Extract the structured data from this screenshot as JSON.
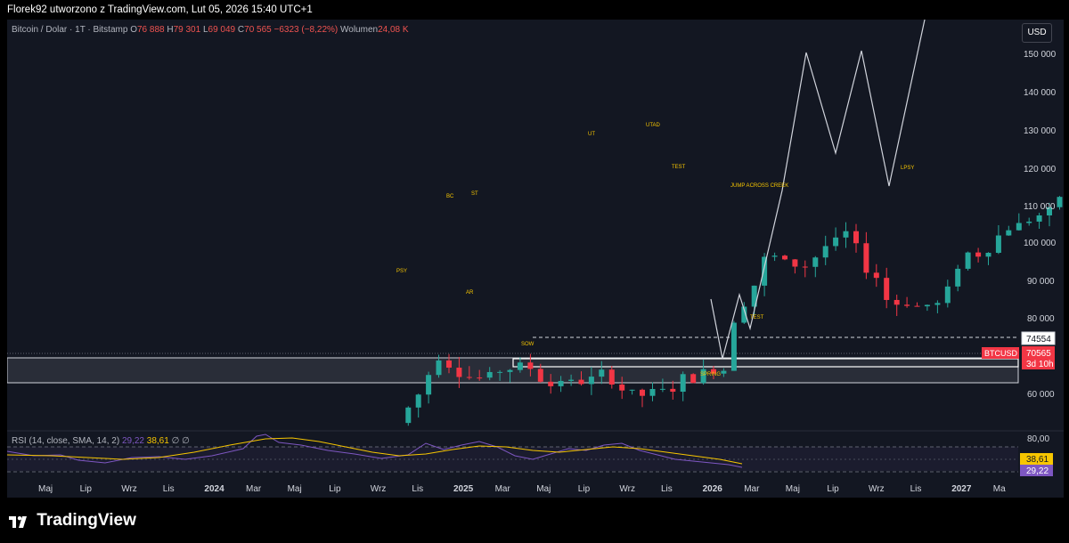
{
  "header": {
    "caption": "Florek92 utworzono z TradingView.com, Lut 05, 2026 15:40 UTC+1"
  },
  "legend": {
    "symbol": "Bitcoin / Dolar · 1T · Bitstamp",
    "o_label": "O",
    "o_value": "76 888",
    "h_label": "H",
    "h_value": "79 301",
    "l_label": "L",
    "l_value": "69 049",
    "c_label": "C",
    "c_value": "70 565",
    "change": "−6323 (−8,22%)",
    "vol_label": "Wolumen",
    "vol_value": "24,08 K"
  },
  "currency_button": "USD",
  "price_axis_ticks": [
    "150 000",
    "140 000",
    "130 000",
    "120 000",
    "110 000",
    "100 000",
    "90 000",
    "80 000",
    "60 000"
  ],
  "price_tags": {
    "level_value": "74554",
    "symbol": "BTCUSD",
    "last_price": "70565",
    "countdown": "3d 10h"
  },
  "rsi": {
    "label": "RSI (14, close, SMA, 14, 2)",
    "rsi_value": "29,22",
    "sma_value": "38,61",
    "extra": "∅ ∅",
    "upper_level": "80,00",
    "tag_sma": "38,61",
    "tag_rsi": "29,22"
  },
  "time_axis": [
    "Maj",
    "Lip",
    "Wrz",
    "Lis",
    "2024",
    "Mar",
    "Maj",
    "Lip",
    "Wrz",
    "Lis",
    "2025",
    "Mar",
    "Maj",
    "Lip",
    "Wrz",
    "Lis",
    "2026",
    "Mar",
    "Maj",
    "Lip",
    "Wrz",
    "Lis",
    "2027",
    "Ma"
  ],
  "annotations": {
    "psy": "PSY",
    "bc": "BC",
    "st": "ST",
    "ar": "AR",
    "sow": "SOW",
    "ut": "UT",
    "utad": "UTAD",
    "test1": "TEST",
    "jump": "JUMP ACROSS CREEK",
    "lpsy": "LPSY",
    "test2": "TEST",
    "spring": "SPRING"
  },
  "colors": {
    "background": "#131722",
    "up": "#26a69a",
    "down": "#f23645",
    "annotation": "#f7c600",
    "rsi_line": "#7e57c2",
    "rsi_ma": "#f7c600",
    "tag_red": "#f23645"
  },
  "chart_data": {
    "type": "candlestick",
    "symbol": "Bitcoin / Dolar",
    "interval": "1T",
    "exchange": "Bitstamp",
    "y_ticks": [
      60000,
      80000,
      90000,
      100000,
      110000,
      120000,
      130000,
      140000,
      150000
    ],
    "ylim": [
      52000,
      157000
    ],
    "last_ohlc": {
      "open": 76888,
      "high": 79301,
      "low": 69049,
      "close": 70565
    },
    "weekly_closes_approx": [
      {
        "date": "2024-02",
        "close": 52000
      },
      {
        "date": "2024-03",
        "close": 68000
      },
      {
        "date": "2024-04",
        "close": 64000
      },
      {
        "date": "2024-05",
        "close": 67500
      },
      {
        "date": "2024-06",
        "close": 62000
      },
      {
        "date": "2024-07",
        "close": 64500
      },
      {
        "date": "2024-08",
        "close": 59000
      },
      {
        "date": "2024-09",
        "close": 63500
      },
      {
        "date": "2024-10",
        "close": 67000
      },
      {
        "date": "2024-11",
        "close": 96000
      },
      {
        "date": "2024-12",
        "close": 93500
      },
      {
        "date": "2025-01",
        "close": 102000
      },
      {
        "date": "2025-02",
        "close": 84500
      },
      {
        "date": "2025-03",
        "close": 82500
      },
      {
        "date": "2025-04",
        "close": 94000
      },
      {
        "date": "2025-05",
        "close": 104000
      },
      {
        "date": "2025-06",
        "close": 107000
      },
      {
        "date": "2025-07",
        "close": 118000
      },
      {
        "date": "2025-08",
        "close": 109000
      },
      {
        "date": "2025-09",
        "close": 114000
      },
      {
        "date": "2025-10",
        "close": 110000
      },
      {
        "date": "2025-11",
        "close": 90000
      },
      {
        "date": "2025-12",
        "close": 88000
      },
      {
        "date": "2026-01",
        "close": 84000
      },
      {
        "date": "2026-02",
        "close": 70565
      }
    ],
    "horizontal_lines": [
      74554
    ],
    "projection_path": [
      {
        "date": "2026-01",
        "value": 68500
      },
      {
        "date": "2026-03",
        "value": 105000
      },
      {
        "date": "2026-05",
        "value": 150000
      },
      {
        "date": "2026-06",
        "value": 124000
      },
      {
        "date": "2026-07",
        "value": 150000
      },
      {
        "date": "2026-09",
        "value": 115000
      },
      {
        "date": "2026-12",
        "value": 157000
      }
    ],
    "rsi": {
      "length": 14,
      "source": "close",
      "ma": "SMA",
      "ma_length": 14,
      "last_rsi": 29.22,
      "last_ma": 38.61,
      "upper": 80
    }
  }
}
